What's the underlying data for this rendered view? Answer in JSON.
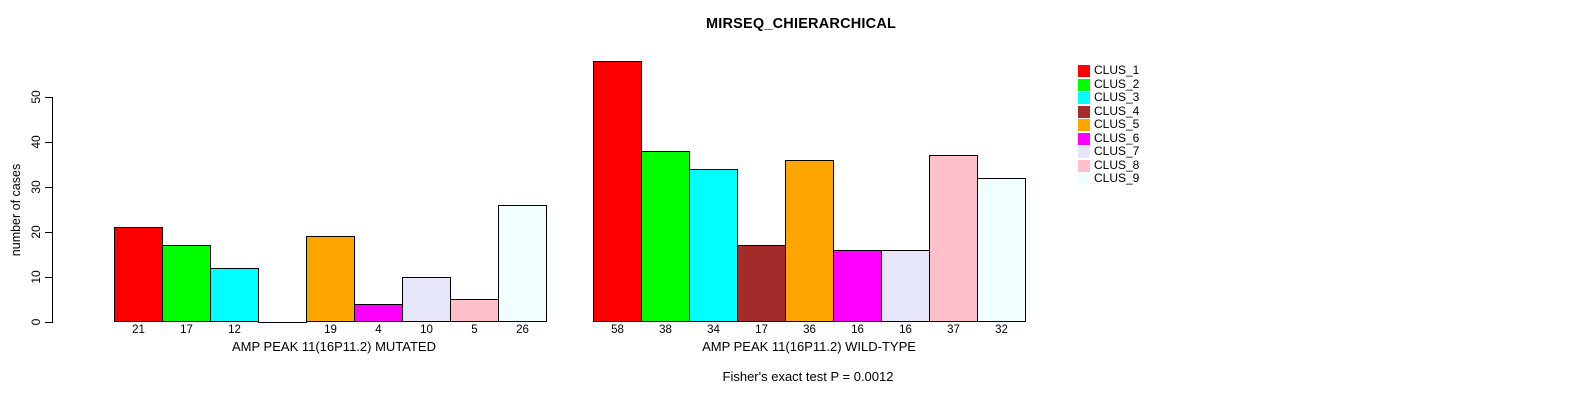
{
  "title": "MIRSEQ_CHIERARCHICAL",
  "chart_data": {
    "type": "bar",
    "title": "MIRSEQ_CHIERARCHICAL",
    "ylabel": "number of cases",
    "ylim": [
      0,
      50
    ],
    "yticks": [
      0,
      10,
      20,
      30,
      40,
      50
    ],
    "grid": false,
    "legend_position": "right",
    "categories": [
      "CLUS_1",
      "CLUS_2",
      "CLUS_3",
      "CLUS_4",
      "CLUS_5",
      "CLUS_6",
      "CLUS_7",
      "CLUS_8",
      "CLUS_9"
    ],
    "colors": [
      "#FF0000",
      "#00FF00",
      "#00FFFF",
      "#A52A2A",
      "#FFA500",
      "#FF00FF",
      "#E6E6FA",
      "#FFC0CB",
      "#F0FFFF"
    ],
    "series": [
      {
        "name": "AMP PEAK 11(16P11.2) MUTATED",
        "values": [
          21,
          17,
          12,
          0,
          19,
          4,
          10,
          5,
          26
        ],
        "bar_labels": [
          "21",
          "17",
          "12",
          "",
          "19",
          "4",
          "10",
          "5",
          "26"
        ]
      },
      {
        "name": "AMP PEAK 11(16P11.2) WILD-TYPE",
        "values": [
          58,
          38,
          34,
          17,
          36,
          16,
          16,
          37,
          32
        ],
        "bar_labels": [
          "58",
          "38",
          "34",
          "17",
          "36",
          "16",
          "16",
          "37",
          "32"
        ]
      }
    ],
    "annotation": "Fisher's exact test P = 0.0012"
  },
  "legend": {
    "entries": [
      {
        "label": "CLUS_1",
        "color": "#FF0000"
      },
      {
        "label": "CLUS_2",
        "color": "#00FF00"
      },
      {
        "label": "CLUS_3",
        "color": "#00FFFF"
      },
      {
        "label": "CLUS_4",
        "color": "#A52A2A"
      },
      {
        "label": "CLUS_5",
        "color": "#FFA500"
      },
      {
        "label": "CLUS_6",
        "color": "#FF00FF"
      },
      {
        "label": "CLUS_7",
        "color": "#E6E6FA"
      },
      {
        "label": "CLUS_8",
        "color": "#FFC0CB"
      },
      {
        "label": "CLUS_9",
        "color": "#F0FFFF"
      }
    ]
  }
}
